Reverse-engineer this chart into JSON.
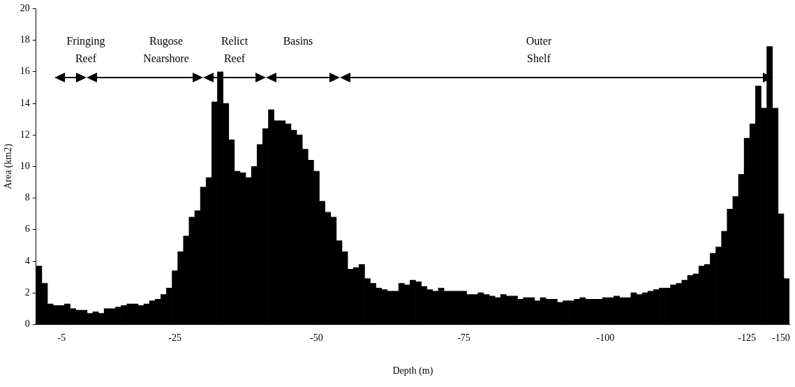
{
  "chart_data": {
    "type": "bar",
    "xlabel": "Depth (m)",
    "ylabel": "Area (km2)",
    "categories": [
      null,
      null,
      null,
      null,
      "-5",
      null,
      null,
      null,
      null,
      null,
      null,
      null,
      null,
      null,
      null,
      null,
      null,
      null,
      null,
      null,
      null,
      null,
      null,
      null,
      "-25",
      null,
      null,
      null,
      null,
      null,
      null,
      null,
      null,
      null,
      null,
      null,
      null,
      null,
      null,
      null,
      null,
      null,
      null,
      null,
      null,
      null,
      null,
      null,
      null,
      "-50",
      null,
      null,
      null,
      null,
      null,
      null,
      null,
      null,
      null,
      null,
      null,
      null,
      null,
      null,
      null,
      null,
      null,
      null,
      null,
      null,
      null,
      null,
      null,
      null,
      null,
      "-75",
      null,
      null,
      null,
      null,
      null,
      null,
      null,
      null,
      null,
      null,
      null,
      null,
      null,
      null,
      null,
      null,
      null,
      null,
      null,
      null,
      null,
      null,
      null,
      null,
      "-100",
      null,
      null,
      null,
      null,
      null,
      null,
      null,
      null,
      null,
      null,
      null,
      null,
      null,
      null,
      null,
      null,
      null,
      null,
      null,
      null,
      null,
      null,
      null,
      null,
      "-125",
      null,
      null,
      null,
      null,
      null,
      "-150",
      null
    ],
    "values": [
      3.7,
      2.6,
      1.3,
      1.2,
      1.2,
      1.3,
      1.0,
      0.9,
      0.9,
      0.7,
      0.8,
      0.7,
      1.0,
      1.0,
      1.1,
      1.2,
      1.3,
      1.3,
      1.2,
      1.3,
      1.5,
      1.6,
      1.9,
      2.3,
      3.4,
      4.6,
      5.6,
      6.8,
      7.2,
      8.7,
      9.3,
      14.1,
      16.0,
      14.0,
      11.7,
      9.7,
      9.6,
      9.3,
      10.0,
      11.4,
      12.4,
      13.6,
      12.9,
      12.9,
      12.7,
      12.3,
      12.0,
      11.1,
      10.4,
      9.7,
      7.8,
      7.1,
      6.8,
      5.3,
      4.6,
      3.5,
      3.6,
      3.8,
      2.9,
      2.6,
      2.3,
      2.2,
      2.1,
      2.1,
      2.6,
      2.5,
      2.8,
      2.7,
      2.4,
      2.2,
      2.1,
      2.3,
      2.1,
      2.1,
      2.1,
      2.1,
      1.9,
      1.9,
      2.0,
      1.9,
      1.8,
      1.7,
      1.9,
      1.8,
      1.8,
      1.6,
      1.7,
      1.7,
      1.5,
      1.7,
      1.6,
      1.6,
      1.4,
      1.5,
      1.5,
      1.6,
      1.7,
      1.6,
      1.6,
      1.6,
      1.7,
      1.7,
      1.8,
      1.7,
      1.7,
      2.0,
      1.9,
      2.0,
      2.1,
      2.2,
      2.3,
      2.3,
      2.5,
      2.6,
      2.8,
      3.1,
      3.2,
      3.7,
      3.8,
      4.5,
      4.9,
      5.9,
      7.3,
      8.1,
      9.5,
      11.8,
      12.7,
      15.1,
      13.7,
      17.6,
      13.7,
      7.0,
      2.9
    ],
    "color": "#000000",
    "ylim": [
      0,
      20
    ],
    "yticks": [
      0,
      2,
      4,
      6,
      8,
      10,
      12,
      14,
      16,
      18,
      20
    ],
    "grid": false,
    "legend": false,
    "annotations": [
      "Fringing Reef",
      "Rugose Nearshore",
      "Relict Reef",
      "Basins",
      "Outer Shelf"
    ]
  }
}
